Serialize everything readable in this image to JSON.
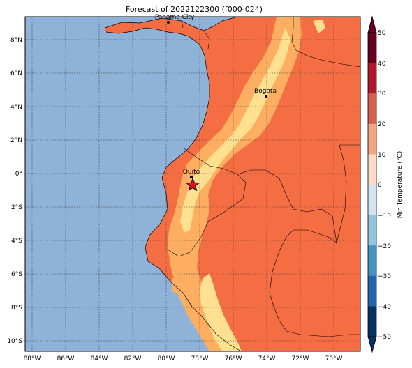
{
  "title": "Forecast of 2022122300 (f000-024)",
  "colorbar": {
    "label": "Min Temperature (°C)",
    "ticks": [
      "50",
      "40",
      "30",
      "20",
      "10",
      "0",
      "−10",
      "−20",
      "−30",
      "−40",
      "−50"
    ],
    "colors": [
      "#67001f",
      "#b2182b",
      "#d6604d",
      "#f4a582",
      "#fddbc7",
      "#f7f7f7",
      "#d1e5f0",
      "#92c5de",
      "#4393c3",
      "#2166ac",
      "#053061"
    ]
  },
  "axes": {
    "lat_ticks": [
      "8°N",
      "6°N",
      "4°N",
      "2°N",
      "0°",
      "2°S",
      "4°S",
      "6°S",
      "8°S",
      "10°S"
    ],
    "lon_ticks": [
      "88°W",
      "86°W",
      "84°W",
      "82°W",
      "80°W",
      "78°W",
      "76°W",
      "74°W",
      "72°W",
      "70°W"
    ]
  },
  "cities": [
    {
      "name": "Panama City"
    },
    {
      "name": "Bogota"
    },
    {
      "name": "Quito"
    }
  ],
  "marker": {
    "type": "star",
    "color": "#e0151b"
  },
  "colors": {
    "ocean": "#8fb2d8",
    "land_warm": "#f46d43",
    "land_mild": "#fdae61",
    "land_cool": "#fee090"
  }
}
